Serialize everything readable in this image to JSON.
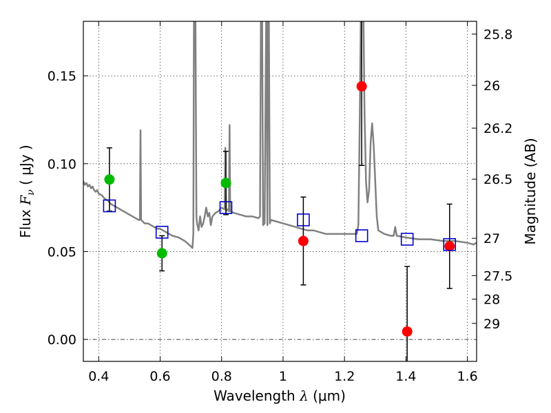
{
  "chart_data": {
    "type": "scatter",
    "xlabel": "Wavelength",
    "xlabel_symbol": "λ",
    "xlabel_unit": "(μm)",
    "ylabel": "Flux",
    "ylabel_symbol": "F",
    "ylabel_subscript": "ν",
    "ylabel_unit": "( μJy )",
    "y2label": "Magnitude (AB)",
    "xlim": [
      0.35,
      1.63
    ],
    "ylim": [
      -0.0125,
      0.181
    ],
    "grid": true,
    "x_ticks": [
      {
        "value": 0.4,
        "label": "0.4"
      },
      {
        "value": 0.6,
        "label": "0.6"
      },
      {
        "value": 0.8,
        "label": "0.8"
      },
      {
        "value": 1.0,
        "label": "1"
      },
      {
        "value": 1.2,
        "label": "1.2"
      },
      {
        "value": 1.4,
        "label": "1.4"
      },
      {
        "value": 1.6,
        "label": "1.6"
      }
    ],
    "y_ticks": [
      {
        "value": 0.0,
        "label": "0.00"
      },
      {
        "value": 0.05,
        "label": "0.05"
      },
      {
        "value": 0.1,
        "label": "0.10"
      },
      {
        "value": 0.15,
        "label": "0.15"
      }
    ],
    "mag_ticks": [
      {
        "value": 25.8,
        "label": "25.8"
      },
      {
        "value": 26.0,
        "label": "26"
      },
      {
        "value": 26.2,
        "label": "26.2"
      },
      {
        "value": 26.5,
        "label": "26.5"
      },
      {
        "value": 27.0,
        "label": "27"
      },
      {
        "value": 27.5,
        "label": "27.5"
      },
      {
        "value": 28.0,
        "label": "28"
      },
      {
        "value": 29.0,
        "label": "29"
      }
    ],
    "colors": {
      "green": "#00bb00",
      "red": "#ff0000",
      "model": "#0000cc",
      "spectrum": "#808080",
      "errorbar": "#000000"
    },
    "series": [
      {
        "name": "observed-optical",
        "color": "green",
        "points": [
          {
            "x": 0.435,
            "y": 0.091,
            "err": 0.018
          },
          {
            "x": 0.606,
            "y": 0.049,
            "err": 0.01
          },
          {
            "x": 0.814,
            "y": 0.089,
            "err": 0.018
          }
        ]
      },
      {
        "name": "observed-nir",
        "color": "red",
        "points": [
          {
            "x": 1.066,
            "y": 0.056,
            "err": 0.025
          },
          {
            "x": 1.256,
            "y": 0.144,
            "err": 0.045
          },
          {
            "x": 1.404,
            "y": 0.0045,
            "err": 0.037
          },
          {
            "x": 1.542,
            "y": 0.053,
            "err": 0.024
          }
        ]
      },
      {
        "name": "model-photometry",
        "color": "model",
        "points": [
          {
            "x": 0.435,
            "y": 0.076
          },
          {
            "x": 0.606,
            "y": 0.061
          },
          {
            "x": 0.814,
            "y": 0.075
          },
          {
            "x": 1.066,
            "y": 0.068
          },
          {
            "x": 1.256,
            "y": 0.059
          },
          {
            "x": 1.404,
            "y": 0.057
          },
          {
            "x": 1.542,
            "y": 0.054
          }
        ]
      }
    ],
    "spectrum": {
      "name": "model-spectrum",
      "points": [
        [
          0.35,
          0.09
        ],
        [
          0.355,
          0.088
        ],
        [
          0.36,
          0.089
        ],
        [
          0.365,
          0.087
        ],
        [
          0.37,
          0.088
        ],
        [
          0.375,
          0.086
        ],
        [
          0.38,
          0.087
        ],
        [
          0.385,
          0.085
        ],
        [
          0.39,
          0.084
        ],
        [
          0.395,
          0.085
        ],
        [
          0.4,
          0.083
        ],
        [
          0.41,
          0.082
        ],
        [
          0.42,
          0.08
        ],
        [
          0.43,
          0.079
        ],
        [
          0.44,
          0.077
        ],
        [
          0.45,
          0.076
        ],
        [
          0.46,
          0.075
        ],
        [
          0.47,
          0.074
        ],
        [
          0.48,
          0.073
        ],
        [
          0.49,
          0.072
        ],
        [
          0.5,
          0.071
        ],
        [
          0.51,
          0.07
        ],
        [
          0.52,
          0.069
        ],
        [
          0.53,
          0.068
        ],
        [
          0.534,
          0.068
        ],
        [
          0.536,
          0.119
        ],
        [
          0.538,
          0.068
        ],
        [
          0.55,
          0.066
        ],
        [
          0.56,
          0.066
        ],
        [
          0.57,
          0.065
        ],
        [
          0.58,
          0.064
        ],
        [
          0.59,
          0.063
        ],
        [
          0.6,
          0.063
        ],
        [
          0.62,
          0.061
        ],
        [
          0.64,
          0.059
        ],
        [
          0.66,
          0.058
        ],
        [
          0.68,
          0.056
        ],
        [
          0.7,
          0.053
        ],
        [
          0.705,
          0.052
        ],
        [
          0.708,
          0.06
        ],
        [
          0.71,
          0.181
        ],
        [
          0.715,
          0.181
        ],
        [
          0.718,
          0.07
        ],
        [
          0.72,
          0.066
        ],
        [
          0.725,
          0.062
        ],
        [
          0.73,
          0.07
        ],
        [
          0.735,
          0.064
        ],
        [
          0.74,
          0.066
        ],
        [
          0.745,
          0.07
        ],
        [
          0.75,
          0.075
        ],
        [
          0.755,
          0.07
        ],
        [
          0.76,
          0.072
        ],
        [
          0.765,
          0.065
        ],
        [
          0.77,
          0.07
        ],
        [
          0.78,
          0.072
        ],
        [
          0.79,
          0.073
        ],
        [
          0.8,
          0.075
        ],
        [
          0.81,
          0.074
        ],
        [
          0.812,
          0.109
        ],
        [
          0.815,
          0.073
        ],
        [
          0.82,
          0.074
        ],
        [
          0.824,
          0.073
        ],
        [
          0.826,
          0.122
        ],
        [
          0.828,
          0.073
        ],
        [
          0.84,
          0.072
        ],
        [
          0.86,
          0.071
        ],
        [
          0.88,
          0.07
        ],
        [
          0.9,
          0.07
        ],
        [
          0.92,
          0.069
        ],
        [
          0.925,
          0.07
        ],
        [
          0.928,
          0.181
        ],
        [
          0.932,
          0.181
        ],
        [
          0.935,
          0.065
        ],
        [
          0.94,
          0.066
        ],
        [
          0.945,
          0.181
        ],
        [
          0.947,
          0.181
        ],
        [
          0.949,
          0.065
        ],
        [
          0.951,
          0.181
        ],
        [
          0.954,
          0.181
        ],
        [
          0.957,
          0.066
        ],
        [
          0.96,
          0.068
        ],
        [
          0.98,
          0.067
        ],
        [
          1.0,
          0.066
        ],
        [
          1.02,
          0.065
        ],
        [
          1.04,
          0.064
        ],
        [
          1.06,
          0.063
        ],
        [
          1.08,
          0.062
        ],
        [
          1.1,
          0.062
        ],
        [
          1.12,
          0.061
        ],
        [
          1.14,
          0.06
        ],
        [
          1.16,
          0.06
        ],
        [
          1.18,
          0.06
        ],
        [
          1.2,
          0.06
        ],
        [
          1.22,
          0.06
        ],
        [
          1.24,
          0.06
        ],
        [
          1.245,
          0.065
        ],
        [
          1.25,
          0.13
        ],
        [
          1.253,
          0.181
        ],
        [
          1.262,
          0.181
        ],
        [
          1.265,
          0.13
        ],
        [
          1.27,
          0.09
        ],
        [
          1.275,
          0.078
        ],
        [
          1.28,
          0.085
        ],
        [
          1.285,
          0.112
        ],
        [
          1.29,
          0.123
        ],
        [
          1.295,
          0.11
        ],
        [
          1.3,
          0.09
        ],
        [
          1.305,
          0.07
        ],
        [
          1.31,
          0.062
        ],
        [
          1.33,
          0.06
        ],
        [
          1.35,
          0.059
        ],
        [
          1.36,
          0.059
        ],
        [
          1.365,
          0.064
        ],
        [
          1.37,
          0.059
        ],
        [
          1.4,
          0.058
        ],
        [
          1.44,
          0.057
        ],
        [
          1.48,
          0.057
        ],
        [
          1.52,
          0.056
        ],
        [
          1.56,
          0.056
        ],
        [
          1.6,
          0.055
        ],
        [
          1.62,
          0.054
        ],
        [
          1.63,
          0.055
        ]
      ]
    },
    "reference_lines": [
      {
        "type": "horizontal",
        "y": 0.0,
        "style": "dashdot"
      }
    ]
  }
}
